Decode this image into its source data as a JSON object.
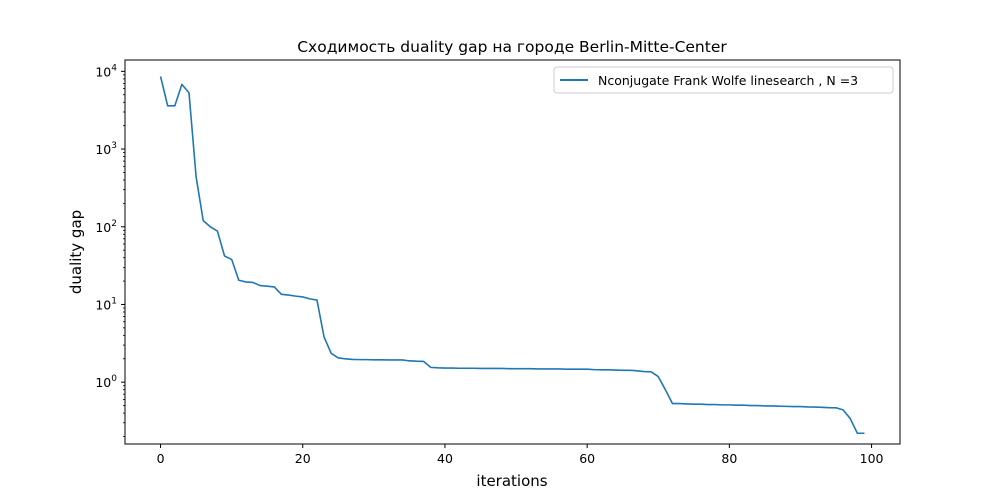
{
  "chart_data": {
    "type": "line",
    "title": "Сходимость duality gap на городе Berlin-Mitte-Center",
    "xlabel": "iterations",
    "ylabel": "duality gap",
    "xlim": [
      -5,
      104
    ],
    "ylim": [
      0.16,
      14000
    ],
    "yscale": "log",
    "grid": false,
    "legend_position": "top-right",
    "x_ticks": [
      0,
      20,
      40,
      60,
      80,
      100
    ],
    "y_ticks": [
      {
        "value": 1,
        "base": "10",
        "exp": "0"
      },
      {
        "value": 10,
        "base": "10",
        "exp": "1"
      },
      {
        "value": 100,
        "base": "10",
        "exp": "2"
      },
      {
        "value": 1000,
        "base": "10",
        "exp": "3"
      },
      {
        "value": 10000,
        "base": "10",
        "exp": "4"
      }
    ],
    "series": [
      {
        "name": "Nconjugate Frank Wolfe linesearch , N =3",
        "color": "#1f77b4",
        "x": [
          0,
          1,
          2,
          3,
          4,
          5,
          6,
          7,
          8,
          9,
          10,
          11,
          12,
          13,
          14,
          15,
          16,
          17,
          18,
          19,
          20,
          21,
          22,
          23,
          24,
          25,
          26,
          27,
          28,
          29,
          30,
          31,
          32,
          33,
          34,
          35,
          36,
          37,
          38,
          39,
          40,
          41,
          42,
          43,
          44,
          45,
          46,
          47,
          48,
          49,
          50,
          51,
          52,
          53,
          54,
          55,
          56,
          57,
          58,
          59,
          60,
          61,
          62,
          63,
          64,
          65,
          66,
          67,
          68,
          69,
          70,
          71,
          72,
          73,
          74,
          75,
          76,
          77,
          78,
          79,
          80,
          81,
          82,
          83,
          84,
          85,
          86,
          87,
          88,
          89,
          90,
          91,
          92,
          93,
          94,
          95,
          96,
          97,
          98,
          99
        ],
        "y": [
          8600,
          3600,
          3600,
          6800,
          5300,
          440,
          120,
          100,
          88,
          42,
          38,
          20.5,
          19.5,
          19.2,
          17.5,
          17.2,
          16.8,
          13.5,
          13.2,
          12.8,
          12.5,
          11.8,
          11.4,
          3.8,
          2.35,
          2.05,
          2.0,
          1.96,
          1.95,
          1.95,
          1.94,
          1.94,
          1.93,
          1.93,
          1.93,
          1.88,
          1.86,
          1.85,
          1.55,
          1.53,
          1.52,
          1.52,
          1.51,
          1.51,
          1.51,
          1.5,
          1.5,
          1.5,
          1.5,
          1.49,
          1.49,
          1.49,
          1.49,
          1.48,
          1.48,
          1.48,
          1.48,
          1.47,
          1.47,
          1.47,
          1.47,
          1.45,
          1.44,
          1.44,
          1.43,
          1.42,
          1.42,
          1.4,
          1.37,
          1.36,
          1.18,
          0.8,
          0.53,
          0.53,
          0.525,
          0.52,
          0.52,
          0.515,
          0.515,
          0.51,
          0.51,
          0.505,
          0.505,
          0.5,
          0.5,
          0.495,
          0.495,
          0.49,
          0.488,
          0.485,
          0.485,
          0.48,
          0.478,
          0.475,
          0.47,
          0.468,
          0.44,
          0.34,
          0.22,
          0.22
        ]
      }
    ]
  }
}
